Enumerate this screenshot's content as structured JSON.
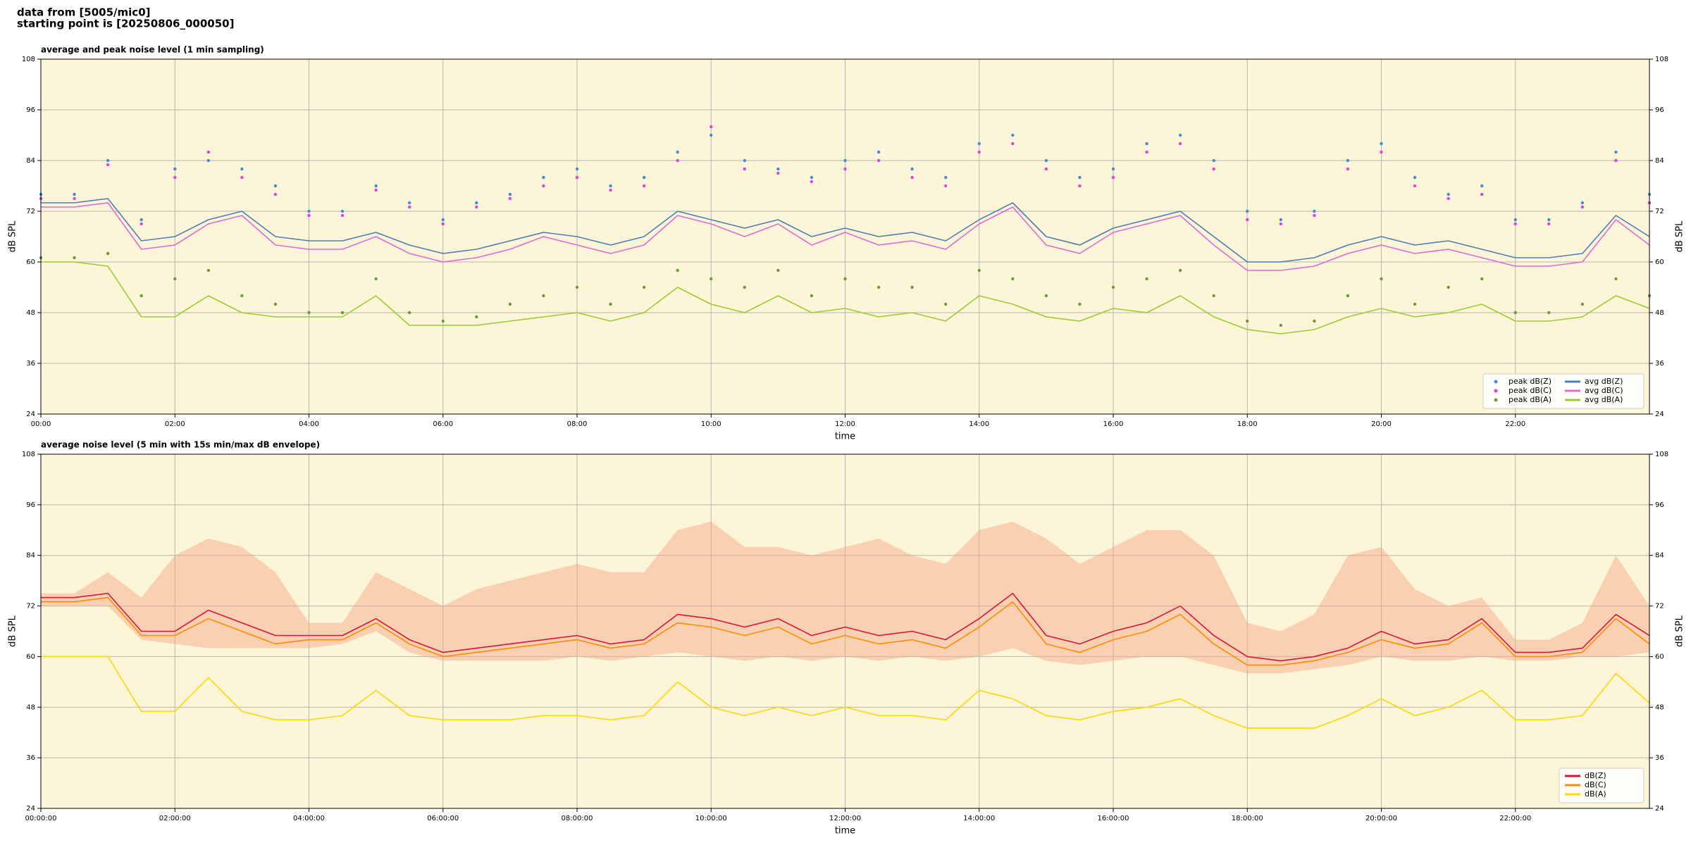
{
  "header": {
    "lines": [
      "data from [5005/mic0]",
      "starting point is [20250806_000050]"
    ]
  },
  "chart_data": [
    {
      "type": "line",
      "title": "average and peak noise level (1 min sampling)",
      "xlabel": "time",
      "ylabel": "dB SPL",
      "x": [
        0,
        0.5,
        1,
        1.5,
        2,
        2.5,
        3,
        3.5,
        4,
        4.5,
        5,
        5.5,
        6,
        6.5,
        7,
        7.5,
        8,
        8.5,
        9,
        9.5,
        10,
        10.5,
        11,
        11.5,
        12,
        12.5,
        13,
        13.5,
        14,
        14.5,
        15,
        15.5,
        16,
        16.5,
        17,
        17.5,
        18,
        18.5,
        19,
        19.5,
        20,
        20.5,
        21,
        21.5,
        22,
        22.5,
        23,
        23.5,
        24
      ],
      "xlim": [
        0,
        24
      ],
      "xticks": [
        {
          "value": 0,
          "label": "00:00"
        },
        {
          "value": 2,
          "label": "02:00"
        },
        {
          "value": 4,
          "label": "04:00"
        },
        {
          "value": 6,
          "label": "06:00"
        },
        {
          "value": 8,
          "label": "08:00"
        },
        {
          "value": 10,
          "label": "10:00"
        },
        {
          "value": 12,
          "label": "12:00"
        },
        {
          "value": 14,
          "label": "14:00"
        },
        {
          "value": 16,
          "label": "16:00"
        },
        {
          "value": 18,
          "label": "18:00"
        },
        {
          "value": 20,
          "label": "20:00"
        },
        {
          "value": 22,
          "label": "22:00"
        }
      ],
      "ylim": [
        24,
        108
      ],
      "yticks": [
        24,
        36,
        48,
        60,
        72,
        84,
        96,
        108
      ],
      "grid": true,
      "legend": "lower right",
      "legend_columns": 2,
      "series": [
        {
          "name": "peak dB(Z)",
          "kind": "scatter",
          "color": "#3a8fd8",
          "values": [
            76,
            76,
            84,
            70,
            82,
            84,
            82,
            78,
            72,
            72,
            78,
            74,
            70,
            74,
            76,
            80,
            82,
            78,
            80,
            86,
            90,
            84,
            82,
            80,
            84,
            86,
            82,
            80,
            88,
            90,
            84,
            80,
            82,
            88,
            90,
            84,
            72,
            70,
            72,
            84,
            88,
            80,
            76,
            78,
            70,
            70,
            74,
            86,
            76
          ]
        },
        {
          "name": "peak dB(C)",
          "kind": "scatter",
          "color": "#e040e0",
          "values": [
            75,
            75,
            83,
            69,
            80,
            86,
            80,
            76,
            71,
            71,
            77,
            73,
            69,
            73,
            75,
            78,
            80,
            77,
            78,
            84,
            92,
            82,
            81,
            79,
            82,
            84,
            80,
            78,
            86,
            88,
            82,
            78,
            80,
            86,
            88,
            82,
            70,
            69,
            71,
            82,
            86,
            78,
            75,
            76,
            69,
            69,
            73,
            84,
            74
          ]
        },
        {
          "name": "peak dB(A)",
          "kind": "scatter",
          "color": "#6a9a3a",
          "values": [
            61,
            61,
            62,
            52,
            56,
            58,
            52,
            50,
            48,
            48,
            56,
            48,
            46,
            47,
            50,
            52,
            54,
            50,
            54,
            58,
            56,
            54,
            58,
            52,
            56,
            54,
            54,
            50,
            58,
            56,
            52,
            50,
            54,
            56,
            58,
            52,
            46,
            45,
            46,
            52,
            56,
            50,
            54,
            56,
            48,
            48,
            50,
            56,
            52
          ]
        },
        {
          "name": "avg dB(Z)",
          "kind": "line",
          "color": "#4a7fb5",
          "values": [
            74,
            74,
            75,
            65,
            66,
            70,
            72,
            66,
            65,
            65,
            67,
            64,
            62,
            63,
            65,
            67,
            66,
            64,
            66,
            72,
            70,
            68,
            70,
            66,
            68,
            66,
            67,
            65,
            70,
            74,
            66,
            64,
            68,
            70,
            72,
            66,
            60,
            60,
            61,
            64,
            66,
            64,
            65,
            63,
            61,
            61,
            62,
            71,
            66
          ]
        },
        {
          "name": "avg dB(C)",
          "kind": "line",
          "color": "#de6ad8",
          "values": [
            73,
            73,
            74,
            63,
            64,
            69,
            71,
            64,
            63,
            63,
            66,
            62,
            60,
            61,
            63,
            66,
            64,
            62,
            64,
            71,
            69,
            66,
            69,
            64,
            67,
            64,
            65,
            63,
            69,
            73,
            64,
            62,
            67,
            69,
            71,
            64,
            58,
            58,
            59,
            62,
            64,
            62,
            63,
            61,
            59,
            59,
            60,
            70,
            64
          ]
        },
        {
          "name": "avg dB(A)",
          "kind": "line",
          "color": "#9acd32",
          "values": [
            60,
            60,
            59,
            47,
            47,
            52,
            48,
            47,
            47,
            47,
            52,
            45,
            45,
            45,
            46,
            47,
            48,
            46,
            48,
            54,
            50,
            48,
            52,
            48,
            49,
            47,
            48,
            46,
            52,
            50,
            47,
            46,
            49,
            48,
            52,
            47,
            44,
            43,
            44,
            47,
            49,
            47,
            48,
            50,
            46,
            46,
            47,
            52,
            49
          ]
        }
      ]
    },
    {
      "type": "line",
      "title": "average noise level (5 min with 15s min/max dB envelope)",
      "xlabel": "time",
      "ylabel": "dB SPL",
      "x": [
        0,
        0.5,
        1,
        1.5,
        2,
        2.5,
        3,
        3.5,
        4,
        4.5,
        5,
        5.5,
        6,
        6.5,
        7,
        7.5,
        8,
        8.5,
        9,
        9.5,
        10,
        10.5,
        11,
        11.5,
        12,
        12.5,
        13,
        13.5,
        14,
        14.5,
        15,
        15.5,
        16,
        16.5,
        17,
        17.5,
        18,
        18.5,
        19,
        19.5,
        20,
        20.5,
        21,
        21.5,
        22,
        22.5,
        23,
        23.5,
        24
      ],
      "xlim": [
        0,
        24
      ],
      "xticks": [
        {
          "value": 0,
          "label": "00:00:00"
        },
        {
          "value": 2,
          "label": "02:00:00"
        },
        {
          "value": 4,
          "label": "04:00:00"
        },
        {
          "value": 6,
          "label": "06:00:00"
        },
        {
          "value": 8,
          "label": "08:00:00"
        },
        {
          "value": 10,
          "label": "10:00:00"
        },
        {
          "value": 12,
          "label": "12:00:00"
        },
        {
          "value": 14,
          "label": "14:00:00"
        },
        {
          "value": 16,
          "label": "16:00:00"
        },
        {
          "value": 18,
          "label": "18:00:00"
        },
        {
          "value": 20,
          "label": "20:00:00"
        },
        {
          "value": 22,
          "label": "22:00:00"
        }
      ],
      "ylim": [
        24,
        108
      ],
      "yticks": [
        24,
        36,
        48,
        60,
        72,
        84,
        96,
        108
      ],
      "grid": true,
      "legend": "lower right",
      "legend_columns": 1,
      "envelope": {
        "color": "#f4a582",
        "low": [
          72,
          72,
          72,
          64,
          63,
          62,
          62,
          62,
          62,
          63,
          66,
          61,
          59,
          59,
          59,
          59,
          60,
          59,
          60,
          61,
          60,
          59,
          60,
          59,
          60,
          59,
          60,
          59,
          60,
          62,
          59,
          58,
          59,
          60,
          60,
          58,
          56,
          56,
          57,
          58,
          60,
          59,
          59,
          60,
          59,
          59,
          60,
          60,
          61
        ],
        "high": [
          75,
          75,
          80,
          74,
          84,
          88,
          86,
          80,
          68,
          68,
          80,
          76,
          72,
          76,
          78,
          80,
          82,
          80,
          80,
          90,
          92,
          86,
          86,
          84,
          86,
          88,
          84,
          82,
          90,
          92,
          88,
          82,
          86,
          90,
          90,
          84,
          68,
          66,
          70,
          84,
          86,
          76,
          72,
          74,
          64,
          64,
          68,
          84,
          72
        ]
      },
      "series": [
        {
          "name": "dB(Z)",
          "kind": "line",
          "color": "#dc143c",
          "values": [
            74,
            74,
            75,
            66,
            66,
            71,
            68,
            65,
            65,
            65,
            69,
            64,
            61,
            62,
            63,
            64,
            65,
            63,
            64,
            70,
            69,
            67,
            69,
            65,
            67,
            65,
            66,
            64,
            69,
            75,
            65,
            63,
            66,
            68,
            72,
            65,
            60,
            59,
            60,
            62,
            66,
            63,
            64,
            69,
            61,
            61,
            62,
            70,
            65
          ]
        },
        {
          "name": "dB(C)",
          "kind": "line",
          "color": "#ff8c00",
          "values": [
            73,
            73,
            74,
            65,
            65,
            69,
            66,
            63,
            64,
            64,
            68,
            63,
            60,
            61,
            62,
            63,
            64,
            62,
            63,
            68,
            67,
            65,
            67,
            63,
            65,
            63,
            64,
            62,
            67,
            73,
            63,
            61,
            64,
            66,
            70,
            63,
            58,
            58,
            59,
            61,
            64,
            62,
            63,
            68,
            60,
            60,
            61,
            69,
            63
          ]
        },
        {
          "name": "dB(A)",
          "kind": "line",
          "color": "#ffd700",
          "values": [
            60,
            60,
            60,
            47,
            47,
            55,
            47,
            45,
            45,
            46,
            52,
            46,
            45,
            45,
            45,
            46,
            46,
            45,
            46,
            54,
            48,
            46,
            48,
            46,
            48,
            46,
            46,
            45,
            52,
            50,
            46,
            45,
            47,
            48,
            50,
            46,
            43,
            43,
            43,
            46,
            50,
            46,
            48,
            52,
            45,
            45,
            46,
            56,
            49
          ]
        }
      ]
    }
  ]
}
